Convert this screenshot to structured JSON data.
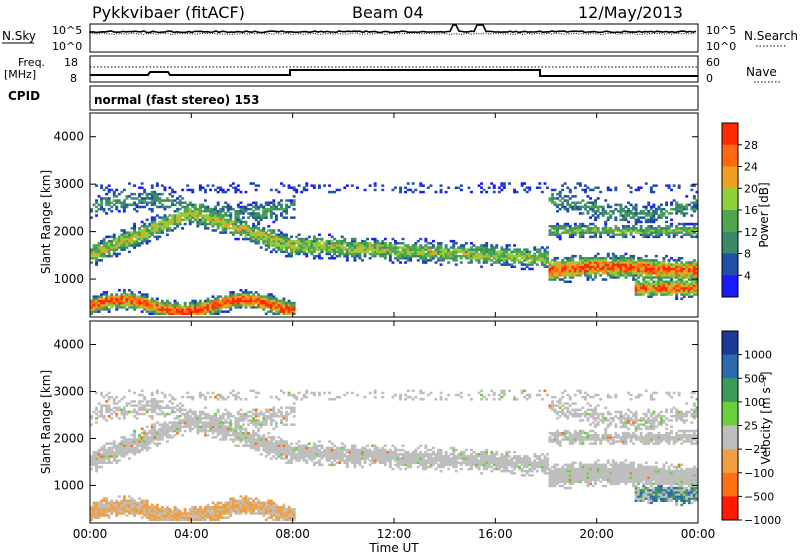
{
  "header": {
    "station": "Pykkvibaer (fitACF)",
    "beam": "Beam 04",
    "date": "12/May/2013"
  },
  "nsky_panel": {
    "left_label": "N.Sky",
    "right_label": "N.Search",
    "left_ticks": [
      "10^5",
      "10^0"
    ],
    "right_ticks": [
      "10^5",
      "10^0"
    ]
  },
  "freq_panel": {
    "left_label_1": "Freq.",
    "left_label_2": "[MHz]",
    "left_ticks": [
      "18",
      "8"
    ],
    "right_label": "Nave",
    "right_ticks": [
      "60",
      "0"
    ]
  },
  "cpid_panel": {
    "label": "CPID",
    "text": "normal (fast stereo) 153"
  },
  "colors": {
    "power_scale": [
      "#1a1aff",
      "#1f4fa8",
      "#3a8a6a",
      "#4fa64f",
      "#8fcf3a",
      "#f0a020",
      "#ff6a10",
      "#ff2a00"
    ],
    "velocity_scale": [
      "#1a3a9a",
      "#2a6ab0",
      "#3a9a5a",
      "#6acf3a",
      "#bebebe",
      "#f0a040",
      "#ff7010",
      "#ff1a00"
    ]
  },
  "chart_data": [
    {
      "type": "heatmap",
      "name": "power-panel",
      "xlabel": "",
      "ylabel": "Slant Range [km]",
      "x_ticks": [
        "00:00",
        "04:00",
        "08:00",
        "12:00",
        "16:00",
        "20:00",
        "00:00"
      ],
      "xlim_hours": [
        0,
        24
      ],
      "ylim": [
        200,
        4500
      ],
      "y_ticks": [
        1000,
        2000,
        3000,
        4000
      ],
      "colorbar": {
        "label": "Power [dB]",
        "ticks": [
          "4",
          "8",
          "12",
          "16",
          "20",
          "24",
          "28"
        ],
        "range": [
          0,
          30
        ]
      }
    },
    {
      "type": "heatmap",
      "name": "velocity-panel",
      "xlabel": "Time UT",
      "ylabel": "Slant Range [km]",
      "x_ticks": [
        "00:00",
        "04:00",
        "08:00",
        "12:00",
        "16:00",
        "20:00",
        "00:00"
      ],
      "xlim_hours": [
        0,
        24
      ],
      "ylim": [
        200,
        4500
      ],
      "y_ticks": [
        1000,
        2000,
        3000,
        4000
      ],
      "colorbar": {
        "label": "Velocity [m s⁻¹]",
        "ticks": [
          "1000",
          "500",
          "100",
          "25",
          "−25",
          "−100",
          "−500",
          "−1000"
        ]
      }
    }
  ]
}
